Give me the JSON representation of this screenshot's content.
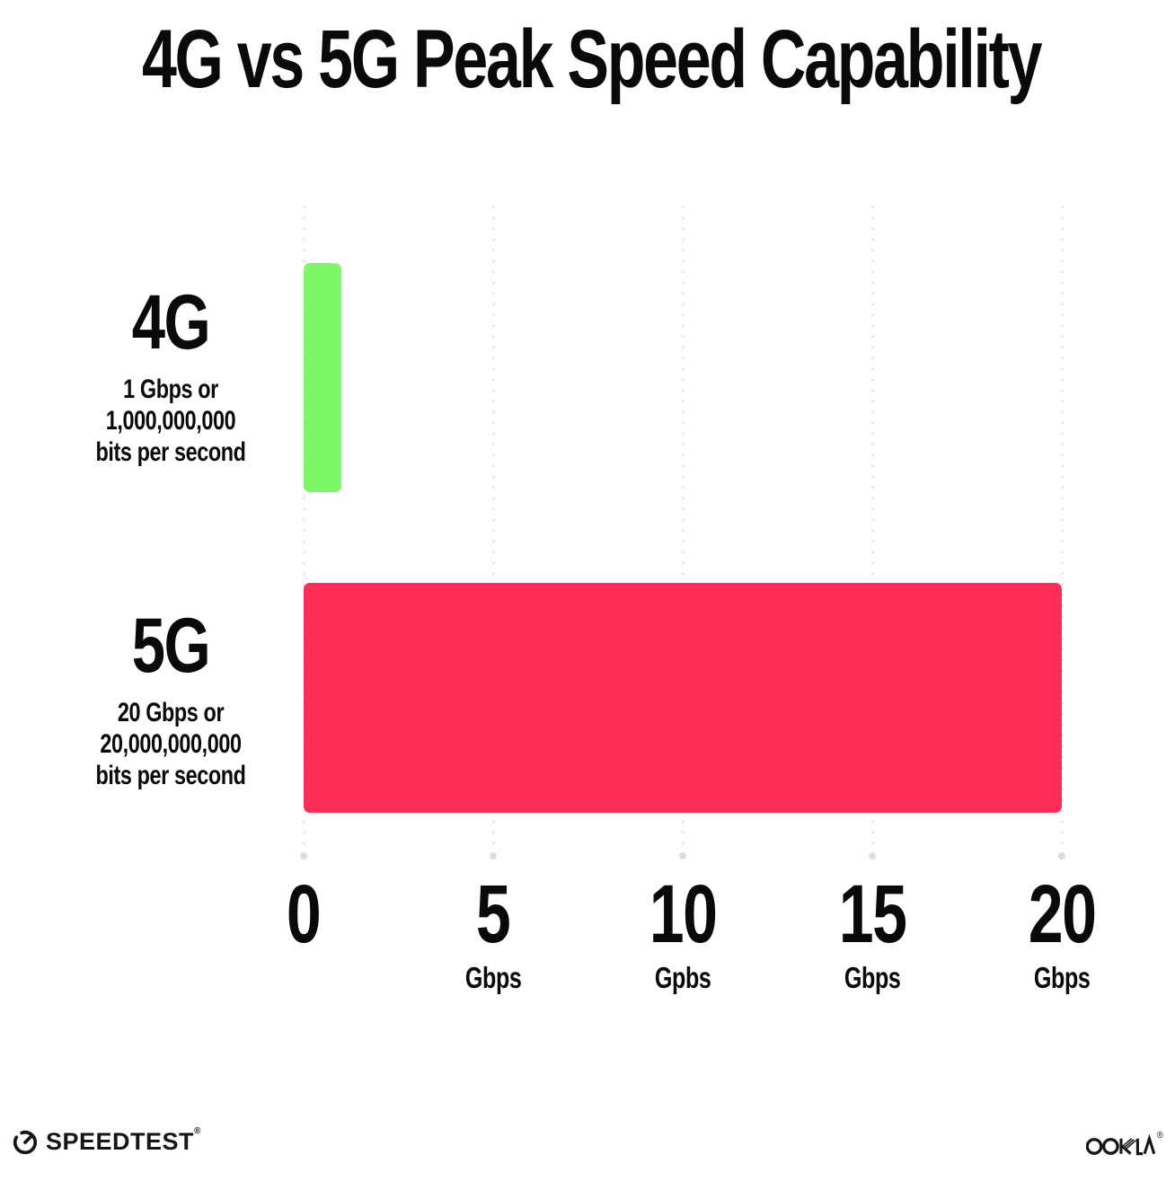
{
  "title": "4G vs 5G Peak Speed Capability",
  "chart_data": {
    "type": "bar",
    "orientation": "horizontal",
    "title": "4G vs 5G Peak Speed Capability",
    "categories": [
      "4G",
      "5G"
    ],
    "values": [
      1,
      20
    ],
    "value_unit": "Gbps",
    "xlim": [
      0,
      20
    ],
    "x_ticks": [
      {
        "value": "0",
        "unit": ""
      },
      {
        "value": "5",
        "unit": "Gbps"
      },
      {
        "value": "10",
        "unit": "Gpbs"
      },
      {
        "value": "15",
        "unit": "Gbps"
      },
      {
        "value": "20",
        "unit": "Gbps"
      }
    ],
    "bar_colors": [
      "#7df767",
      "#fc2d56"
    ],
    "grid": "vertical dotted gridlines at 0,5,10,15,20",
    "legend": "none"
  },
  "rows": [
    {
      "label": "4G",
      "sub_line1": "1 Gbps or",
      "sub_line2": "1,000,000,000",
      "sub_line3": "bits per second",
      "value": 1,
      "color": "#7df767"
    },
    {
      "label": "5G",
      "sub_line1": "20 Gbps or",
      "sub_line2": "20,000,000,000",
      "sub_line3": "bits per second",
      "value": 20,
      "color": "#fc2d56"
    }
  ],
  "footer": {
    "speedtest_label": "SPEEDTEST",
    "speedtest_trademark": "®",
    "speedtest_icon": "gauge-icon",
    "ookla_label": "OOKLA",
    "ookla_trademark": "®",
    "ookla_icon": "ookla-wordmark"
  },
  "colors": {
    "background": "#ffffff",
    "text": "#0a0a0a",
    "bar_4g_green": "#7df767",
    "bar_5g_pink": "#fc2d56",
    "gridline_dots": "#e2e2ee",
    "gridline_end_dot": "#dbdbe8"
  }
}
